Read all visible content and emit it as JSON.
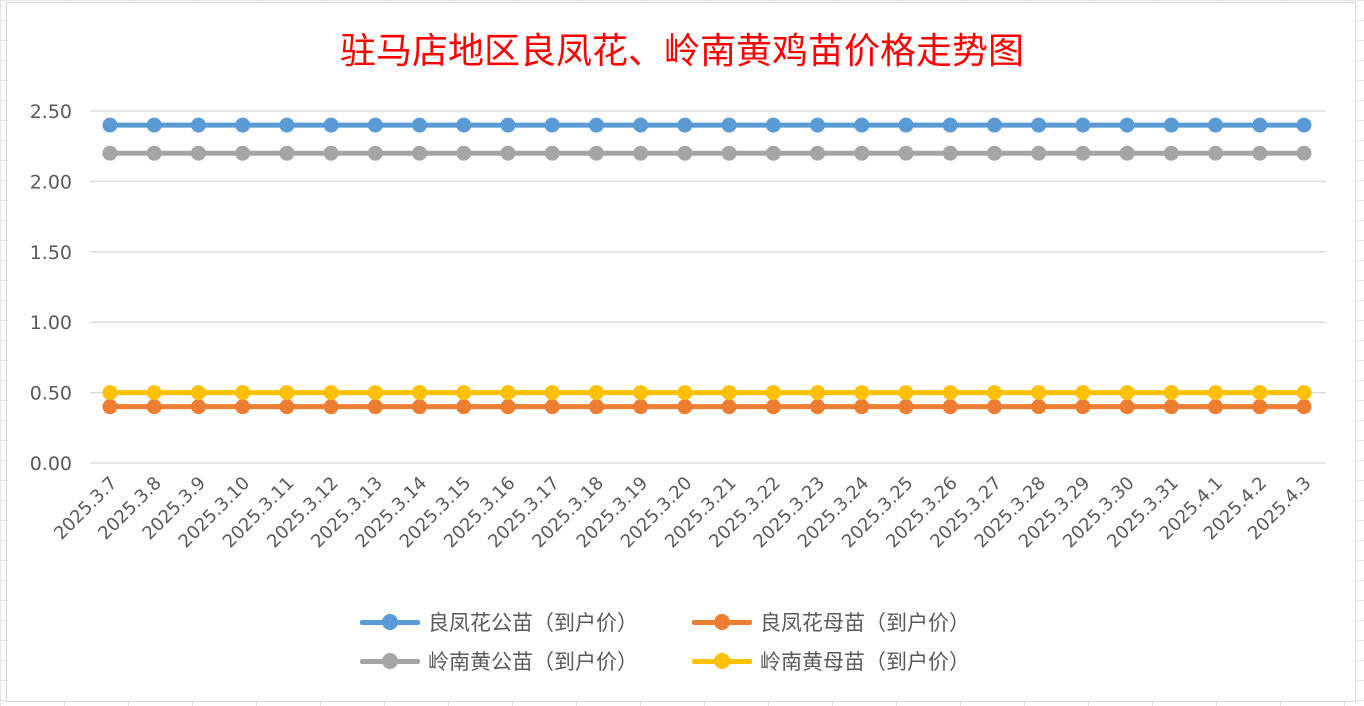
{
  "chart_data": {
    "type": "line",
    "title": "驻马店地区良凤花、岭南黄鸡苗价格走势图",
    "categories": [
      "2025.3.7",
      "2025.3.8",
      "2025.3.9",
      "2025.3.10",
      "2025.3.11",
      "2025.3.12",
      "2025.3.13",
      "2025.3.14",
      "2025.3.15",
      "2025.3.16",
      "2025.3.17",
      "2025.3.18",
      "2025.3.19",
      "2025.3.20",
      "2025.3.21",
      "2025.3.22",
      "2025.3.23",
      "2025.3.24",
      "2025.3.25",
      "2025.3.26",
      "2025.3.27",
      "2025.3.28",
      "2025.3.29",
      "2025.3.30",
      "2025.3.31",
      "2025.4.1",
      "2025.4.2",
      "2025.4.3"
    ],
    "yticks": [
      "0.00",
      "0.50",
      "1.00",
      "1.50",
      "2.00",
      "2.50"
    ],
    "ylim": [
      0,
      2.5
    ],
    "grid": true,
    "legend_position": "bottom",
    "series": [
      {
        "name": "良凤花公苗（到户价）",
        "color": "#5b9bd5",
        "values": [
          2.4,
          2.4,
          2.4,
          2.4,
          2.4,
          2.4,
          2.4,
          2.4,
          2.4,
          2.4,
          2.4,
          2.4,
          2.4,
          2.4,
          2.4,
          2.4,
          2.4,
          2.4,
          2.4,
          2.4,
          2.4,
          2.4,
          2.4,
          2.4,
          2.4,
          2.4,
          2.4,
          2.4
        ]
      },
      {
        "name": "良凤花母苗（到户价）",
        "color": "#ed7d31",
        "values": [
          0.4,
          0.4,
          0.4,
          0.4,
          0.4,
          0.4,
          0.4,
          0.4,
          0.4,
          0.4,
          0.4,
          0.4,
          0.4,
          0.4,
          0.4,
          0.4,
          0.4,
          0.4,
          0.4,
          0.4,
          0.4,
          0.4,
          0.4,
          0.4,
          0.4,
          0.4,
          0.4,
          0.4
        ]
      },
      {
        "name": "岭南黄公苗（到户价）",
        "color": "#a5a5a5",
        "values": [
          2.2,
          2.2,
          2.2,
          2.2,
          2.2,
          2.2,
          2.2,
          2.2,
          2.2,
          2.2,
          2.2,
          2.2,
          2.2,
          2.2,
          2.2,
          2.2,
          2.2,
          2.2,
          2.2,
          2.2,
          2.2,
          2.2,
          2.2,
          2.2,
          2.2,
          2.2,
          2.2,
          2.2
        ]
      },
      {
        "name": "岭南黄母苗（到户价）",
        "color": "#ffc000",
        "values": [
          0.5,
          0.5,
          0.5,
          0.5,
          0.5,
          0.5,
          0.5,
          0.5,
          0.5,
          0.5,
          0.5,
          0.5,
          0.5,
          0.5,
          0.5,
          0.5,
          0.5,
          0.5,
          0.5,
          0.5,
          0.5,
          0.5,
          0.5,
          0.5,
          0.5,
          0.5,
          0.5,
          0.5
        ]
      }
    ]
  }
}
